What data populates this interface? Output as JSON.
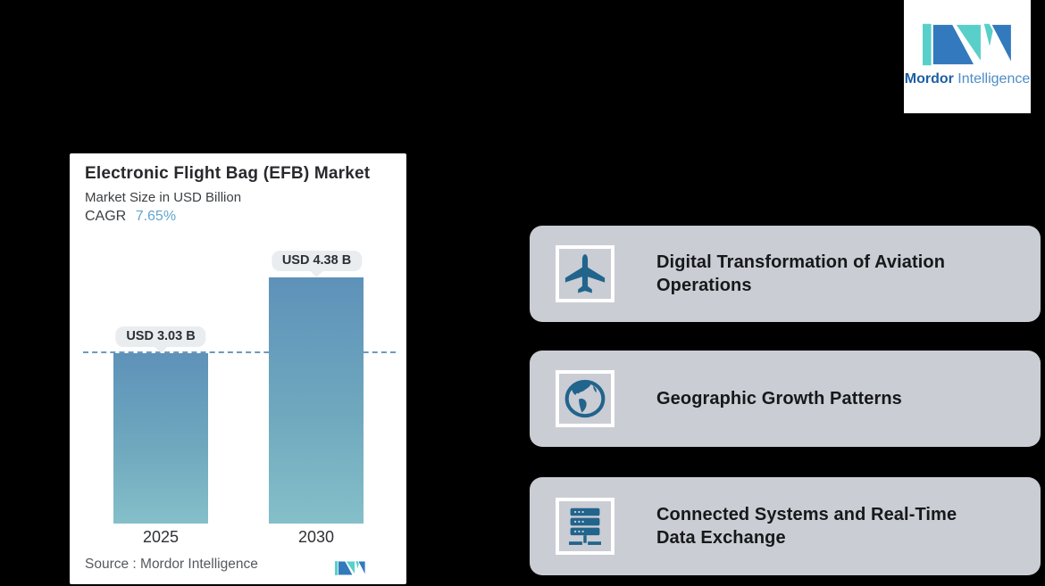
{
  "brand": {
    "wordmark_primary": "Mordor",
    "wordmark_secondary": "Intelligence",
    "colors": {
      "logo_blue": "#3279bd",
      "logo_teal": "#59cfc9",
      "icon_blue": "#21648c",
      "accent_blue": "#61a5cd"
    }
  },
  "chart_card": {
    "title": "Electronic Flight Bag (EFB) Market",
    "subtitle": "Market Size in USD Billion",
    "cagr_label": "CAGR",
    "cagr_value": "7.65%",
    "source_text": "Source :  Mordor Intelligence"
  },
  "chart_data": {
    "type": "bar",
    "title": "Electronic Flight Bag (EFB) Market",
    "subtitle": "Market Size in USD Billion",
    "cagr": "7.65%",
    "categories": [
      "2025",
      "2030"
    ],
    "values": [
      3.03,
      4.38
    ],
    "value_labels": [
      "USD 3.03 B",
      "USD 4.38 B"
    ],
    "unit": "USD Billion",
    "reference_line_at": 3.03,
    "grid": false,
    "legend": false,
    "bar_gradient_top": "#5e92b9",
    "bar_gradient_bottom": "#85bfc9"
  },
  "highlights": [
    {
      "icon": "airplane-icon",
      "label": "Digital Transformation of Aviation Operations"
    },
    {
      "icon": "globe-icon",
      "label": "Geographic Growth Patterns"
    },
    {
      "icon": "server-icon",
      "label": "Connected Systems and Real-Time Data Exchange"
    }
  ]
}
